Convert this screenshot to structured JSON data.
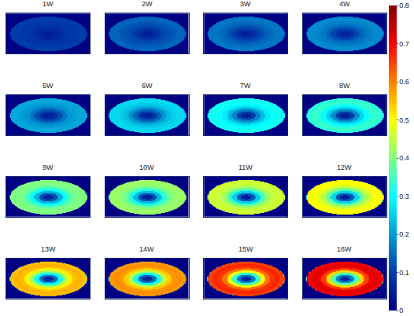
{
  "chart_data": {
    "type": "heatmap",
    "color": "Jet",
    "zlim": [
      0,
      0.8
    ],
    "zticks": [
      0,
      0.1,
      0.2,
      0.3,
      0.4,
      0.5,
      0.6,
      0.7,
      0.8
    ],
    "tick_labels": false,
    "outside": 0,
    "panels": [
      {
        "title": "1W",
        "rings": [
          0.05,
          0.06,
          0.07,
          0.08,
          0.09,
          0.09,
          0.1,
          0.1
        ]
      },
      {
        "title": "2W",
        "rings": [
          0.05,
          0.07,
          0.09,
          0.11,
          0.12,
          0.13,
          0.14,
          0.14
        ]
      },
      {
        "title": "3W",
        "rings": [
          0.05,
          0.07,
          0.1,
          0.12,
          0.14,
          0.15,
          0.16,
          0.16
        ]
      },
      {
        "title": "4W",
        "rings": [
          0.06,
          0.08,
          0.11,
          0.14,
          0.16,
          0.17,
          0.18,
          0.18
        ]
      },
      {
        "title": "5W",
        "rings": [
          0.05,
          0.08,
          0.12,
          0.16,
          0.19,
          0.2,
          0.21,
          0.21
        ]
      },
      {
        "title": "6W",
        "rings": [
          0.05,
          0.09,
          0.14,
          0.19,
          0.23,
          0.25,
          0.26,
          0.26
        ]
      },
      {
        "title": "7W",
        "rings": [
          0.05,
          0.1,
          0.17,
          0.23,
          0.28,
          0.3,
          0.31,
          0.31
        ]
      },
      {
        "title": "8W",
        "rings": [
          0.05,
          0.1,
          0.18,
          0.25,
          0.3,
          0.33,
          0.34,
          0.33
        ]
      },
      {
        "title": "9W",
        "rings": [
          0.06,
          0.12,
          0.22,
          0.3,
          0.36,
          0.39,
          0.4,
          0.4
        ]
      },
      {
        "title": "10W",
        "rings": [
          0.05,
          0.12,
          0.23,
          0.32,
          0.38,
          0.41,
          0.42,
          0.42
        ]
      },
      {
        "title": "11W",
        "rings": [
          0.05,
          0.13,
          0.25,
          0.35,
          0.42,
          0.45,
          0.46,
          0.46
        ]
      },
      {
        "title": "12W",
        "rings": [
          0.05,
          0.13,
          0.26,
          0.37,
          0.44,
          0.48,
          0.5,
          0.5
        ]
      },
      {
        "title": "13W",
        "rings": [
          0.06,
          0.15,
          0.3,
          0.43,
          0.51,
          0.55,
          0.56,
          0.55
        ]
      },
      {
        "title": "14W",
        "rings": [
          0.06,
          0.15,
          0.31,
          0.45,
          0.54,
          0.58,
          0.59,
          0.58
        ]
      },
      {
        "title": "15W",
        "rings": [
          0.06,
          0.16,
          0.34,
          0.5,
          0.61,
          0.66,
          0.67,
          0.65
        ]
      },
      {
        "title": "16W",
        "rings": [
          0.06,
          0.17,
          0.36,
          0.53,
          0.65,
          0.71,
          0.72,
          0.7
        ]
      }
    ]
  }
}
